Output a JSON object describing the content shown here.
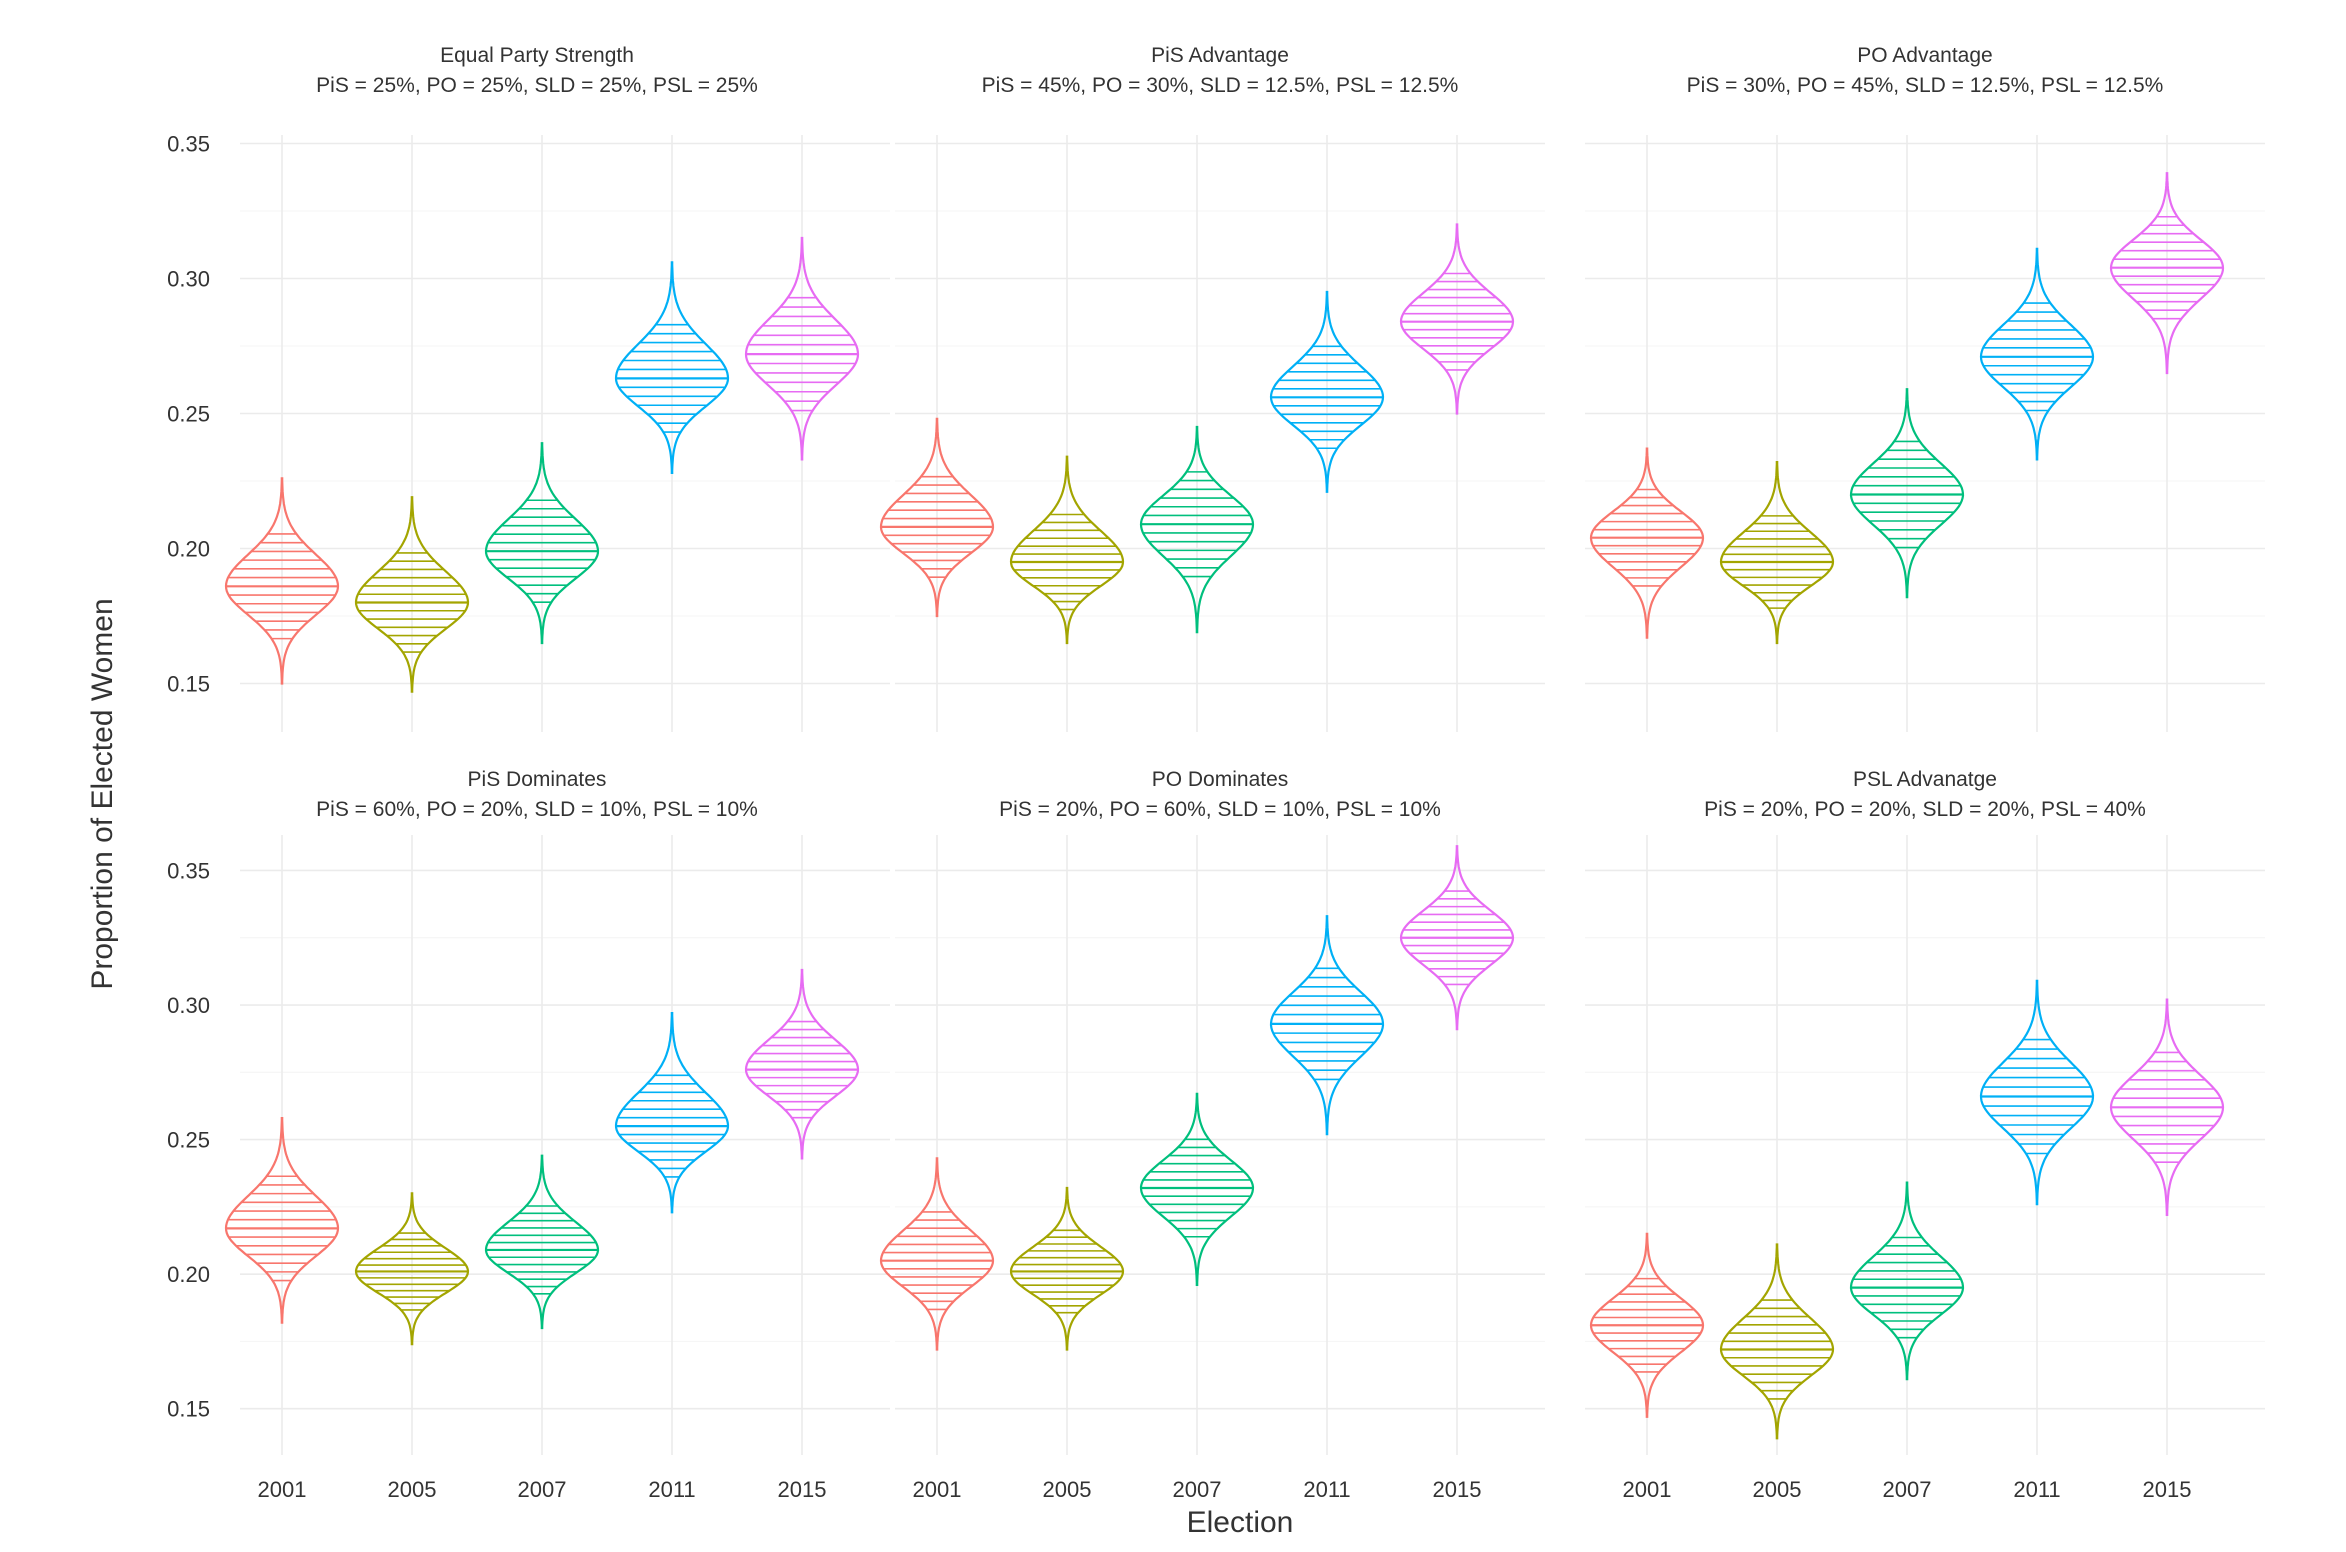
{
  "chart_data": {
    "type": "violin",
    "layout": "facet-grid-2x3",
    "xlabel": "Election",
    "ylabel": "Proportion of Elected Women",
    "categories": [
      "2001",
      "2005",
      "2007",
      "2011",
      "2015"
    ],
    "colors": {
      "2001": "#F8766D",
      "2005": "#A3A500",
      "2007": "#00BF7D",
      "2011": "#00B0F6",
      "2015": "#E76BF3"
    },
    "ylim": [
      0.125,
      0.355
    ],
    "yticks": [
      0.15,
      0.2,
      0.25,
      0.3,
      0.35
    ],
    "ytick_labels": [
      "0.15",
      "0.20",
      "0.25",
      "0.30",
      "0.35"
    ],
    "grid": true,
    "legend": "none",
    "panels": [
      {
        "title": "Equal Party Strength",
        "subtitle": "PiS = 25%, PO = 25%, SLD = 25%, PSL = 25%",
        "violins": [
          {
            "category": "2001",
            "median": 0.186,
            "min": 0.15,
            "max": 0.226
          },
          {
            "category": "2005",
            "median": 0.18,
            "min": 0.147,
            "max": 0.219
          },
          {
            "category": "2007",
            "median": 0.199,
            "min": 0.165,
            "max": 0.239
          },
          {
            "category": "2011",
            "median": 0.263,
            "min": 0.228,
            "max": 0.306
          },
          {
            "category": "2015",
            "median": 0.272,
            "min": 0.233,
            "max": 0.315
          }
        ]
      },
      {
        "title": "PiS Advantage",
        "subtitle": "PiS = 45%, PO = 30%, SLD = 12.5%, PSL = 12.5%",
        "violins": [
          {
            "category": "2001",
            "median": 0.208,
            "min": 0.175,
            "max": 0.248
          },
          {
            "category": "2005",
            "median": 0.195,
            "min": 0.165,
            "max": 0.234
          },
          {
            "category": "2007",
            "median": 0.209,
            "min": 0.169,
            "max": 0.245
          },
          {
            "category": "2011",
            "median": 0.256,
            "min": 0.221,
            "max": 0.295
          },
          {
            "category": "2015",
            "median": 0.284,
            "min": 0.25,
            "max": 0.32
          }
        ]
      },
      {
        "title": "PO Advantage",
        "subtitle": "PiS = 30%, PO = 45%, SLD = 12.5%, PSL = 12.5%",
        "violins": [
          {
            "category": "2001",
            "median": 0.204,
            "min": 0.167,
            "max": 0.237
          },
          {
            "category": "2005",
            "median": 0.195,
            "min": 0.165,
            "max": 0.232
          },
          {
            "category": "2007",
            "median": 0.22,
            "min": 0.182,
            "max": 0.259
          },
          {
            "category": "2011",
            "median": 0.271,
            "min": 0.233,
            "max": 0.311
          },
          {
            "category": "2015",
            "median": 0.304,
            "min": 0.265,
            "max": 0.339
          }
        ]
      },
      {
        "title": "PiS Dominates",
        "subtitle": "PiS = 60%, PO = 20%, SLD = 10%, PSL = 10%",
        "violins": [
          {
            "category": "2001",
            "median": 0.217,
            "min": 0.182,
            "max": 0.258
          },
          {
            "category": "2005",
            "median": 0.201,
            "min": 0.174,
            "max": 0.23
          },
          {
            "category": "2007",
            "median": 0.209,
            "min": 0.18,
            "max": 0.244
          },
          {
            "category": "2011",
            "median": 0.255,
            "min": 0.223,
            "max": 0.297
          },
          {
            "category": "2015",
            "median": 0.276,
            "min": 0.243,
            "max": 0.313
          }
        ]
      },
      {
        "title": "PO Dominates",
        "subtitle": "PiS = 20%, PO = 60%, SLD = 10%, PSL = 10%",
        "violins": [
          {
            "category": "2001",
            "median": 0.205,
            "min": 0.172,
            "max": 0.243
          },
          {
            "category": "2005",
            "median": 0.201,
            "min": 0.172,
            "max": 0.232
          },
          {
            "category": "2007",
            "median": 0.232,
            "min": 0.196,
            "max": 0.267
          },
          {
            "category": "2011",
            "median": 0.293,
            "min": 0.252,
            "max": 0.333
          },
          {
            "category": "2015",
            "median": 0.325,
            "min": 0.291,
            "max": 0.359
          }
        ]
      },
      {
        "title": "PSL Advanatge",
        "subtitle": "PiS = 20%, PO = 20%, SLD = 20%, PSL = 40%",
        "violins": [
          {
            "category": "2001",
            "median": 0.181,
            "min": 0.147,
            "max": 0.215
          },
          {
            "category": "2005",
            "median": 0.172,
            "min": 0.139,
            "max": 0.211
          },
          {
            "category": "2007",
            "median": 0.195,
            "min": 0.161,
            "max": 0.234
          },
          {
            "category": "2011",
            "median": 0.266,
            "min": 0.226,
            "max": 0.309
          },
          {
            "category": "2015",
            "median": 0.262,
            "min": 0.222,
            "max": 0.302
          }
        ]
      }
    ]
  }
}
